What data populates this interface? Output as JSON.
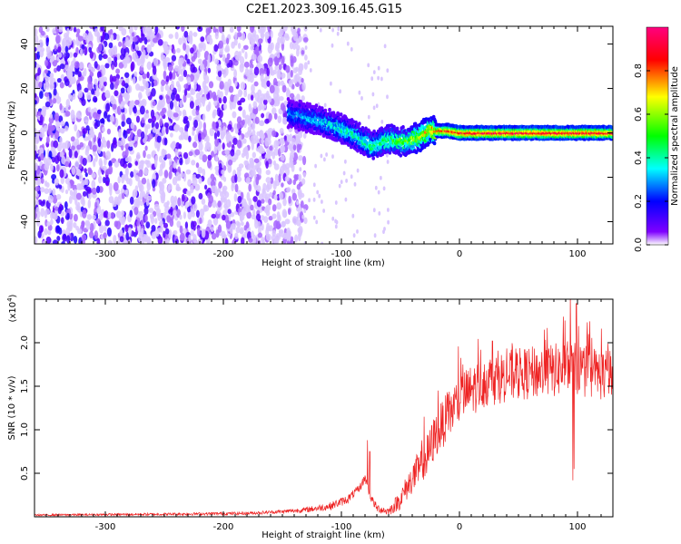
{
  "title": "C2E1.2023.309.16.45.G15",
  "chart_data": [
    {
      "type": "heatmap",
      "xlabel": "Height of straight line (km)",
      "ylabel": "Frequency (Hz)",
      "xlim": [
        -360,
        130
      ],
      "ylim": [
        -50,
        48
      ],
      "x_ticks": [
        -300,
        -200,
        -100,
        0,
        100
      ],
      "x_tick_labels": [
        "-300",
        "-200",
        "-100",
        "0",
        "100"
      ],
      "y_ticks": [
        -40,
        -20,
        0,
        20,
        40
      ],
      "y_tick_labels": [
        "-40",
        "-20",
        "0",
        "20",
        "40"
      ],
      "colorbar": {
        "label": "Normalized spectral amplitude",
        "range": [
          0,
          1
        ],
        "ticks": [
          0.0,
          0.2,
          0.4,
          0.6,
          0.8
        ],
        "tick_labels": [
          "0.0",
          "0.2",
          "0.4",
          "0.6",
          "0.8"
        ],
        "colormap": [
          "#ffffff",
          "#7f00ff",
          "#0000ff",
          "#00ffff",
          "#00ff00",
          "#ffff00",
          "#ff0000",
          "#ff007f"
        ]
      },
      "ridge": [
        {
          "x": -145,
          "y": 9,
          "amp": 0.3
        },
        {
          "x": -130,
          "y": 7,
          "amp": 0.32
        },
        {
          "x": -115,
          "y": 5,
          "amp": 0.35
        },
        {
          "x": -100,
          "y": 2,
          "amp": 0.4
        },
        {
          "x": -85,
          "y": -2,
          "amp": 0.42
        },
        {
          "x": -75,
          "y": -6,
          "amp": 0.45
        },
        {
          "x": -60,
          "y": -3,
          "amp": 0.5
        },
        {
          "x": -45,
          "y": -4,
          "amp": 0.55
        },
        {
          "x": -35,
          "y": -2,
          "amp": 0.65
        },
        {
          "x": -25,
          "y": 1,
          "amp": 0.75
        },
        {
          "x": -10,
          "y": 1,
          "amp": 0.85
        },
        {
          "x": 0,
          "y": 0,
          "amp": 0.9
        },
        {
          "x": 50,
          "y": 0,
          "amp": 0.92
        },
        {
          "x": 100,
          "y": 0,
          "amp": 0.92
        },
        {
          "x": 130,
          "y": 0,
          "amp": 0.9
        }
      ],
      "noise_boundary_x": -140
    },
    {
      "type": "line",
      "xlabel": "Height of straight line (km)",
      "ylabel": "SNR (10 * v/v)",
      "y_multiplier": "(x10",
      "y_multiplier_exp": "4",
      "y_multiplier_close": ")",
      "xlim": [
        -360,
        130
      ],
      "ylim": [
        0,
        2.5
      ],
      "x_ticks": [
        -300,
        -200,
        -100,
        0,
        100
      ],
      "x_tick_labels": [
        "-300",
        "-200",
        "-100",
        "0",
        "100"
      ],
      "y_ticks": [
        0.5,
        1.0,
        1.5,
        2.0
      ],
      "y_tick_labels": [
        "0.5",
        "1.0",
        "1.5",
        "2.0"
      ],
      "color": "#ee2222",
      "envelope_x": [
        -360,
        -250,
        -180,
        -150,
        -130,
        -110,
        -95,
        -85,
        -80,
        -75,
        -70,
        -60,
        -50,
        -40,
        -30,
        -20,
        -10,
        0,
        20,
        40,
        60,
        80,
        95,
        110,
        130
      ],
      "envelope_y": [
        0.02,
        0.03,
        0.04,
        0.06,
        0.08,
        0.12,
        0.2,
        0.32,
        0.45,
        0.22,
        0.1,
        0.06,
        0.2,
        0.45,
        0.6,
        0.95,
        1.15,
        1.35,
        1.55,
        1.62,
        1.65,
        1.68,
        1.72,
        1.66,
        1.62
      ],
      "noise_x": [
        -360,
        -150,
        -100,
        -60,
        -30,
        0,
        40,
        100,
        130
      ],
      "noise_y": [
        0.01,
        0.02,
        0.05,
        0.05,
        0.25,
        0.3,
        0.3,
        0.32,
        0.3
      ],
      "peaks": [
        {
          "x": -78,
          "y": 0.88
        },
        {
          "x": -76,
          "y": 0.75
        },
        {
          "x": -30,
          "y": 1.15
        },
        {
          "x": -18,
          "y": 1.45
        },
        {
          "x": 3,
          "y": 1.75
        },
        {
          "x": 18,
          "y": 1.92
        },
        {
          "x": 28,
          "y": 2.02
        },
        {
          "x": 45,
          "y": 1.95
        },
        {
          "x": 72,
          "y": 2.15
        },
        {
          "x": 88,
          "y": 2.3
        },
        {
          "x": 94,
          "y": 2.55
        },
        {
          "x": 99,
          "y": 2.45
        },
        {
          "x": 108,
          "y": 2.05
        },
        {
          "x": 96,
          "y": 0.42
        },
        {
          "x": 97,
          "y": 0.55
        }
      ]
    }
  ]
}
